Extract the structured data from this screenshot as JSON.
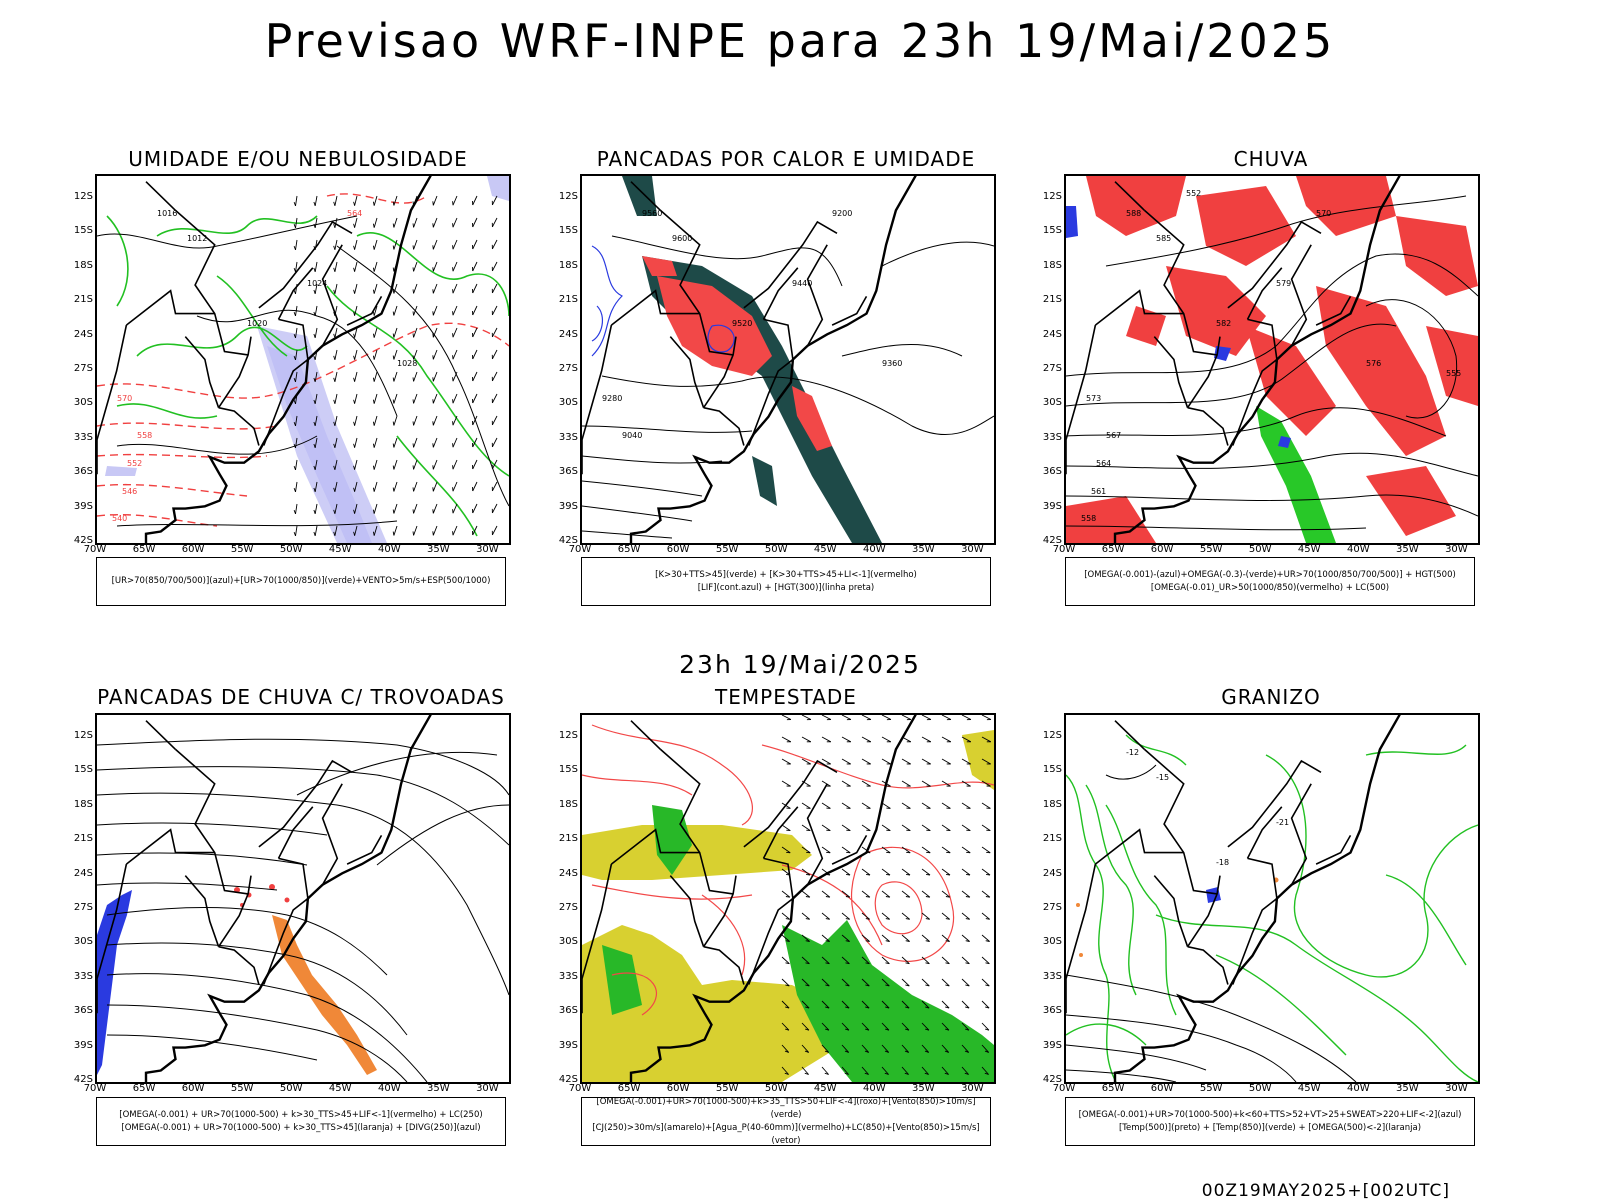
{
  "title": "Previsao WRF-INPE  para 23h 19/Mai/2025",
  "mid_title": "23h 19/Mai/2025",
  "footer": "00Z19MAY2025+[002UTC]",
  "axis": {
    "lat_labels": [
      "12S",
      "15S",
      "18S",
      "21S",
      "24S",
      "27S",
      "30S",
      "33S",
      "36S",
      "39S",
      "42S"
    ],
    "lon_labels": [
      "70W",
      "65W",
      "60W",
      "55W",
      "50W",
      "45W",
      "40W",
      "35W",
      "30W"
    ]
  },
  "panels": [
    {
      "title": "UMIDADE E/OU NEBULOSIDADE",
      "legend": [
        "[UR>70(850/700/500)](azul)+[UR>70(1000/850)](verde)+VENTO>5m/s+ESP(500/1000)"
      ],
      "contour_labels": [
        "1016",
        "1012",
        "1020",
        "1024",
        "1028",
        "570",
        "564",
        "558",
        "552",
        "546",
        "540"
      ]
    },
    {
      "title": "PANCADAS POR CALOR E UMIDADE",
      "legend": [
        "[K>30+TTS>45](verde) + [K>30+TTS>45+LI<-1](vermelho)",
        "[LIF](cont.azul) + [HGT(300)](linha preta)"
      ],
      "contour_labels": [
        "9560",
        "9600",
        "9520",
        "9440",
        "9360",
        "9280",
        "9200",
        "9040"
      ]
    },
    {
      "title": "CHUVA",
      "legend": [
        "[OMEGA(-0.001)-(azul)+OMEGA(-0.3)-(verde)+UR>70(1000/850/700/500)] + HGT(500)",
        "[OMEGA(-0.01)_UR>50(1000/850)(vermelho) + LC(500)"
      ],
      "contour_labels": [
        "588",
        "585",
        "582",
        "579",
        "576",
        "573",
        "570",
        "567",
        "564",
        "561",
        "558",
        "555",
        "552"
      ]
    },
    {
      "title": "PANCADAS DE CHUVA C/ TROVOADAS",
      "legend": [
        "[OMEGA(-0.001) + UR>70(1000-500) + k>30_TTS>45+LIF<-1](vermelho) + LC(250)",
        "[OMEGA(-0.001) + UR>70(1000-500) + k>30_TTS>45](laranja) + [DIVG(250)](azul)"
      ],
      "contour_labels": []
    },
    {
      "title": "TEMPESTADE",
      "legend": [
        "[OMEGA(-0.001)+UR>70(1000-500)+k>35_TTS>50+LIF<-4](roxo)+[Vento(850)>10m/s](verde)",
        "[CJ(250)>30m/s](amarelo)+[Agua_P(40-60mm)](vermelho)+LC(850)+[Vento(850)>15m/s](vetor)"
      ],
      "contour_labels": []
    },
    {
      "title": "GRANIZO",
      "legend": [
        "[OMEGA(-0.001)+UR>70(1000-500)+k<60+TTS>52+VT>25+SWEAT>220+LIF<-2](azul)",
        "[Temp(500)](preto) + [Temp(850)](verde) + [OMEGA(500)<-2](laranja)"
      ],
      "contour_labels": [
        "-12",
        "-15",
        "-18",
        "-21"
      ]
    }
  ],
  "colors": {
    "humidity_green": "#22c022",
    "humidity_blue": "#6a6af0",
    "humidity_lightblue": "#c8c8f5",
    "thickness_red": "#f04040",
    "storm_red": "#f24848",
    "storm_darkteal": "#1e4a48",
    "rain_green": "#28c828",
    "hail_orange": "#f08838",
    "jet_yellow": "#d8d030",
    "vector_black": "#000000"
  }
}
